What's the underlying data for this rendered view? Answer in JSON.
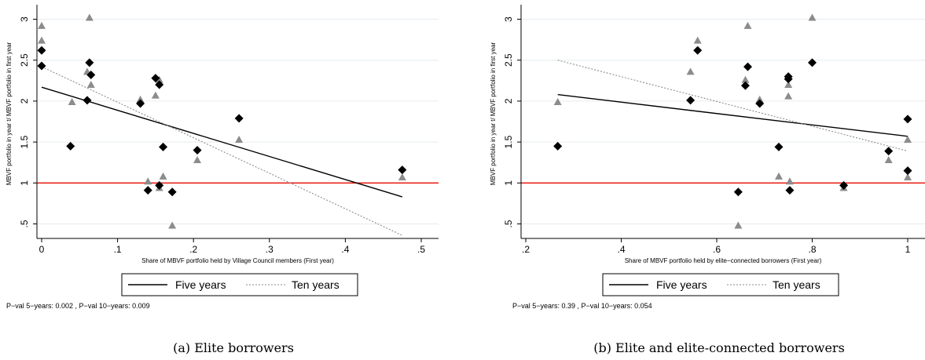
{
  "chart_data": [
    {
      "type": "scatter",
      "caption": "(a)  Elite borrowers",
      "xlabel": "Share of MBVF portfolio held by Village Council members (First year)",
      "ylabel": "MBVF portfolio in year t/ MBVF portfolio in first year",
      "xlim": [
        0,
        0.5
      ],
      "ylim": [
        0.38,
        3.12
      ],
      "xticks": [
        "0",
        ".1",
        ".2",
        ".3",
        ".4",
        ".5"
      ],
      "xtick_values": [
        0,
        0.1,
        0.2,
        0.3,
        0.4,
        0.5
      ],
      "yticks": [
        ".5",
        "1",
        "1.5",
        "2",
        "2.5",
        "3"
      ],
      "ytick_values": [
        0.5,
        1,
        1.5,
        2,
        2.5,
        3
      ],
      "grid": true,
      "reference_line": {
        "y": 1,
        "color": "#e8281e"
      },
      "series": [
        {
          "name": "Five years",
          "marker": "diamond",
          "color": "#000000",
          "points": [
            [
              0,
              2.62
            ],
            [
              0,
              2.43
            ],
            [
              0.038,
              1.45
            ],
            [
              0.06,
              2.01
            ],
            [
              0.063,
              2.47
            ],
            [
              0.065,
              2.32
            ],
            [
              0.13,
              1.97
            ],
            [
              0.14,
              0.91
            ],
            [
              0.15,
              2.28
            ],
            [
              0.155,
              2.2
            ],
            [
              0.155,
              0.97
            ],
            [
              0.16,
              1.44
            ],
            [
              0.172,
              0.89
            ],
            [
              0.205,
              1.4
            ],
            [
              0.26,
              1.79
            ],
            [
              0.475,
              1.16
            ]
          ],
          "fit": [
            [
              0,
              2.17
            ],
            [
              0.475,
              0.83
            ]
          ]
        },
        {
          "name": "Ten years",
          "marker": "triangle",
          "color": "#8c8c8c",
          "points": [
            [
              0,
              2.92
            ],
            [
              0,
              2.74
            ],
            [
              0.04,
              1.99
            ],
            [
              0.063,
              3.02
            ],
            [
              0.06,
              2.36
            ],
            [
              0.065,
              2.2
            ],
            [
              0.13,
              2.02
            ],
            [
              0.14,
              1.02
            ],
            [
              0.15,
              2.07
            ],
            [
              0.155,
              2.26
            ],
            [
              0.155,
              0.94
            ],
            [
              0.16,
              1.08
            ],
            [
              0.172,
              0.48
            ],
            [
              0.205,
              1.28
            ],
            [
              0.26,
              1.53
            ],
            [
              0.475,
              1.07
            ]
          ],
          "fit": [
            [
              0,
              2.42
            ],
            [
              0.475,
              0.36
            ]
          ]
        }
      ],
      "legend": [
        "Five years",
        "Ten years"
      ],
      "legend_position": "bottom",
      "note": "P−val 5−years: 0.002 , P−val 10−years: 0.009"
    },
    {
      "type": "scatter",
      "caption": "(b)  Elite and elite-connected borrowers",
      "xlabel": "Share of MBVF portfolio held by elite−connected borrowers (First year)",
      "ylabel": "MBVF portfolio in year t/ MBVF portfolio in first year",
      "xlim": [
        0.2,
        1.0
      ],
      "ylim": [
        0.38,
        3.12
      ],
      "xticks": [
        ".2",
        ".4",
        ".6",
        ".8",
        "1"
      ],
      "xtick_values": [
        0.2,
        0.4,
        0.6,
        0.8,
        1.0
      ],
      "yticks": [
        ".5",
        "1",
        "1.5",
        "2",
        "2.5",
        "3"
      ],
      "ytick_values": [
        0.5,
        1,
        1.5,
        2,
        2.5,
        3
      ],
      "grid": true,
      "reference_line": {
        "y": 1,
        "color": "#e8281e"
      },
      "series": [
        {
          "name": "Five years",
          "marker": "diamond",
          "color": "#000000",
          "points": [
            [
              0.267,
              1.45
            ],
            [
              0.545,
              2.01
            ],
            [
              0.56,
              2.62
            ],
            [
              0.645,
              0.89
            ],
            [
              0.66,
              2.19
            ],
            [
              0.665,
              2.42
            ],
            [
              0.69,
              1.97
            ],
            [
              0.73,
              1.44
            ],
            [
              0.75,
              2.3
            ],
            [
              0.75,
              2.27
            ],
            [
              0.753,
              0.91
            ],
            [
              0.8,
              2.47
            ],
            [
              0.866,
              0.97
            ],
            [
              0.96,
              1.39
            ],
            [
              1.0,
              1.78
            ],
            [
              1.0,
              1.15
            ]
          ],
          "fit": [
            [
              0.267,
              2.08
            ],
            [
              1.0,
              1.57
            ]
          ]
        },
        {
          "name": "Ten years",
          "marker": "triangle",
          "color": "#8c8c8c",
          "points": [
            [
              0.267,
              1.99
            ],
            [
              0.545,
              2.36
            ],
            [
              0.56,
              2.74
            ],
            [
              0.645,
              0.48
            ],
            [
              0.66,
              2.26
            ],
            [
              0.665,
              2.92
            ],
            [
              0.69,
              2.02
            ],
            [
              0.73,
              1.08
            ],
            [
              0.75,
              2.2
            ],
            [
              0.75,
              2.06
            ],
            [
              0.753,
              1.02
            ],
            [
              0.8,
              3.02
            ],
            [
              0.866,
              0.94
            ],
            [
              0.96,
              1.28
            ],
            [
              1.0,
              1.53
            ],
            [
              1.0,
              1.07
            ]
          ],
          "fit": [
            [
              0.267,
              2.5
            ],
            [
              1.0,
              1.39
            ]
          ]
        }
      ],
      "legend": [
        "Five years",
        "Ten years"
      ],
      "legend_position": "bottom",
      "note": "P−val 5−years: 0.39 , P−val 10−years: 0.054"
    }
  ]
}
